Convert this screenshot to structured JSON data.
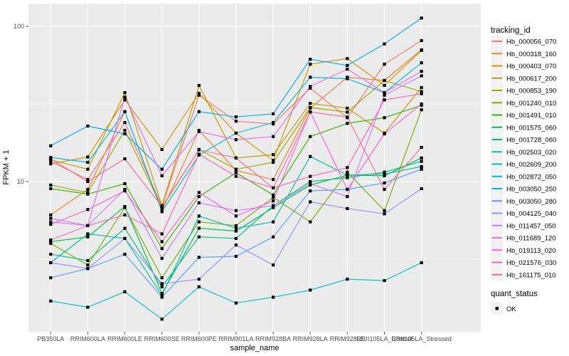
{
  "figure": {
    "background": "#FFFFFF"
  },
  "chart_data": {
    "type": "line",
    "title": "",
    "xlabel": "sample_name",
    "ylabel": "FPKM + 1",
    "y_scale": "log10",
    "ylim": [
      1.08,
      127
    ],
    "y_breaks": [
      10,
      100
    ],
    "y_break_labels": [
      "10",
      "100"
    ],
    "y_minor_breaks": [
      3.162,
      31.62
    ],
    "grid": "on",
    "legend_position": "right",
    "categories": [
      "PB350LA",
      "RRIM600LA",
      "RRIM600LE",
      "RRIM600SE",
      "RRIM600PE",
      "RRIM901LA",
      "RRIM928BA",
      "RRIM928LA",
      "RRIM928LE",
      "RRII105LA_Control",
      "RRII105LA_Stressed"
    ],
    "series": [
      {
        "name": "Hb_000056_070",
        "color": "#F8766D",
        "values": [
          13.5,
          10.3,
          24.0,
          6.9,
          36.0,
          24.5,
          23.5,
          40.0,
          25.8,
          57.0,
          81.0
        ]
      },
      {
        "name": "Hb_000318_160",
        "color": "#EA8331",
        "values": [
          6.1,
          8.9,
          28.2,
          6.5,
          21.4,
          11.8,
          10.3,
          29.7,
          47.0,
          44.8,
          70.6
        ]
      },
      {
        "name": "Hb_000403_070",
        "color": "#D89000",
        "values": [
          13.0,
          14.4,
          33.6,
          16.1,
          37.0,
          20.5,
          13.7,
          57.0,
          62.0,
          41.6,
          70.0
        ]
      },
      {
        "name": "Hb_000617_200",
        "color": "#C09B00",
        "values": [
          13.8,
          12.0,
          37.4,
          7.0,
          41.6,
          14.2,
          14.9,
          31.9,
          29.7,
          20.5,
          40.3
        ]
      },
      {
        "name": "Hb_000853_190",
        "color": "#A3A500",
        "values": [
          9.5,
          8.5,
          21.4,
          6.8,
          16.1,
          12.0,
          13.3,
          30.0,
          28.0,
          44.8,
          38.0
        ]
      },
      {
        "name": "Hb_001240_010",
        "color": "#7CAE00",
        "values": [
          4.0,
          2.9,
          6.8,
          2.4,
          5.5,
          5.2,
          7.9,
          5.5,
          11.5,
          6.5,
          29.0
        ]
      },
      {
        "name": "Hb_001491_010",
        "color": "#39B600",
        "values": [
          9.0,
          8.3,
          9.7,
          3.7,
          8.0,
          11.4,
          8.2,
          19.5,
          23.7,
          25.8,
          31.0
        ]
      },
      {
        "name": "Hb_001575_060",
        "color": "#00BB4E",
        "values": [
          4.1,
          4.4,
          6.9,
          1.9,
          5.0,
          4.8,
          6.8,
          9.5,
          11.0,
          10.9,
          14.2
        ]
      },
      {
        "name": "Hb_001728_060",
        "color": "#00BF7D",
        "values": [
          3.4,
          3.1,
          5.0,
          2.1,
          4.4,
          4.3,
          7.0,
          10.0,
          10.6,
          11.5,
          13.5
        ]
      },
      {
        "name": "Hb_002503_020",
        "color": "#00C1A3",
        "values": [
          3.0,
          4.6,
          4.3,
          1.85,
          6.0,
          5.0,
          5.5,
          14.5,
          11.0,
          11.2,
          12.5
        ]
      },
      {
        "name": "Hb_002609_200",
        "color": "#00BFC4",
        "values": [
          1.7,
          1.55,
          1.95,
          1.3,
          2.1,
          1.65,
          1.8,
          2.0,
          2.35,
          2.3,
          3.0
        ]
      },
      {
        "name": "Hb_002872_050",
        "color": "#00B8E0",
        "values": [
          14.3,
          13.3,
          28.2,
          6.4,
          14.8,
          20.5,
          24.0,
          47.0,
          46.0,
          37.4,
          58.2
        ]
      },
      {
        "name": "Hb_003050_250",
        "color": "#00ACFC",
        "values": [
          17.0,
          22.8,
          20.3,
          12.0,
          28.2,
          26.1,
          27.3,
          61.4,
          56.0,
          77.0,
          113.0
        ]
      },
      {
        "name": "Hb_003050_280",
        "color": "#529EFF",
        "values": [
          2.4,
          2.75,
          3.4,
          1.8,
          3.25,
          3.3,
          4.4,
          8.7,
          8.9,
          9.8,
          12.0
        ]
      },
      {
        "name": "Hb_004125_040",
        "color": "#9590FF",
        "values": [
          3.0,
          2.75,
          4.3,
          2.2,
          2.35,
          3.9,
          2.9,
          7.4,
          6.7,
          6.2,
          9.0
        ]
      },
      {
        "name": "Hb_011457_050",
        "color": "#C77CFF",
        "values": [
          5.8,
          5.2,
          8.9,
          3.2,
          7.3,
          6.5,
          7.0,
          9.7,
          8.0,
          36.0,
          48.0
        ]
      },
      {
        "name": "Hb_011689_120",
        "color": "#E76BF3",
        "values": [
          5.5,
          5.2,
          35.0,
          10.9,
          21.0,
          18.6,
          19.5,
          41.0,
          53.0,
          37.4,
          51.3
        ]
      },
      {
        "name": "Hb_019113_020",
        "color": "#FA62DB",
        "values": [
          5.3,
          6.6,
          8.7,
          4.1,
          8.5,
          6.0,
          7.5,
          28.1,
          8.9,
          20.3,
          31.6
        ]
      },
      {
        "name": "Hb_021576_030",
        "color": "#FF62BC",
        "values": [
          4.2,
          5.2,
          6.1,
          4.6,
          15.0,
          10.8,
          9.1,
          10.8,
          12.3,
          33.6,
          36.8
        ]
      },
      {
        "name": "Hb_161175_010",
        "color": "#FF6A98",
        "values": [
          14.0,
          10.0,
          14.0,
          6.9,
          16.0,
          14.2,
          9.1,
          28.1,
          26.0,
          8.9,
          16.6
        ]
      }
    ],
    "points": {
      "shape": "filled-square",
      "color": "#000000"
    }
  },
  "legend": {
    "color_legend": {
      "title": "tracking_id"
    },
    "shape_legend": {
      "title": "quant_status",
      "items": [
        {
          "label": "OK",
          "marker": "black-square"
        }
      ]
    }
  },
  "style": {
    "panel_bg": "#EBEBEB",
    "grid_color": "#FFFFFF",
    "axis_text_color": "#4D4D4D",
    "axis_title_color": "#000000",
    "tick_color": "#333333",
    "legend_key_bg": "#F2F2F2",
    "point_color": "#000000"
  }
}
